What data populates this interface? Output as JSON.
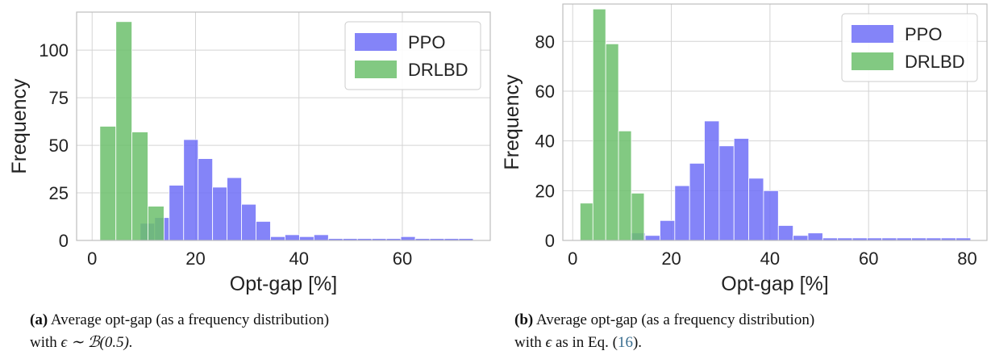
{
  "colors": {
    "ppo": "#6f6ff7",
    "drlbd": "#6cbf6c",
    "grid": "#d4d4d4",
    "frame": "#bdbdbd"
  },
  "chart_data": [
    {
      "type": "histogram",
      "xlabel": "Opt-gap [%]",
      "ylabel": "Frequency",
      "xlim": [
        -3,
        77
      ],
      "ylim": [
        0,
        120
      ],
      "xticks": [
        0,
        20,
        40,
        60
      ],
      "yticks": [
        0,
        25,
        50,
        75,
        100
      ],
      "grid": true,
      "legend_position": "top-right",
      "series": [
        {
          "name": "PPO",
          "bins": [
            [
              9.3,
              12.1,
              9
            ],
            [
              12.1,
              14.9,
              12
            ],
            [
              14.9,
              17.7,
              29
            ],
            [
              17.7,
              20.5,
              53
            ],
            [
              20.5,
              23.3,
              43
            ],
            [
              23.3,
              26.1,
              28
            ],
            [
              26.1,
              28.9,
              33
            ],
            [
              28.9,
              31.7,
              19
            ],
            [
              31.7,
              34.5,
              10
            ],
            [
              34.5,
              37.3,
              2
            ],
            [
              37.3,
              40.1,
              3
            ],
            [
              40.1,
              42.9,
              2
            ],
            [
              42.9,
              45.7,
              3
            ],
            [
              45.7,
              48.5,
              1
            ],
            [
              48.5,
              51.3,
              1
            ],
            [
              51.3,
              54.1,
              1
            ],
            [
              54.1,
              56.9,
              1
            ],
            [
              56.9,
              59.7,
              1
            ],
            [
              59.7,
              62.5,
              2
            ],
            [
              62.5,
              65.3,
              1
            ],
            [
              65.3,
              68.1,
              1
            ],
            [
              68.1,
              70.9,
              1
            ],
            [
              70.9,
              73.7,
              1
            ]
          ]
        },
        {
          "name": "DRLBD",
          "bins": [
            [
              1.5,
              4.6,
              60
            ],
            [
              4.6,
              7.7,
              115
            ],
            [
              7.7,
              10.8,
              57
            ],
            [
              10.8,
              13.9,
              18
            ]
          ]
        }
      ]
    },
    {
      "type": "histogram",
      "xlabel": "Opt-gap [%]",
      "ylabel": "Frequency",
      "xlim": [
        -2,
        84
      ],
      "ylim": [
        0,
        95
      ],
      "xticks": [
        0,
        20,
        40,
        60,
        80
      ],
      "yticks": [
        0,
        20,
        40,
        60,
        80
      ],
      "grid": true,
      "legend_position": "top-right",
      "series": [
        {
          "name": "PPO",
          "bins": [
            [
              11.7,
              14.7,
              3
            ],
            [
              14.7,
              17.7,
              2
            ],
            [
              17.7,
              20.7,
              8
            ],
            [
              20.7,
              23.7,
              22
            ],
            [
              23.7,
              26.7,
              31
            ],
            [
              26.7,
              29.7,
              48
            ],
            [
              29.7,
              32.7,
              38
            ],
            [
              32.7,
              35.7,
              41
            ],
            [
              35.7,
              38.7,
              25
            ],
            [
              38.7,
              41.7,
              20
            ],
            [
              41.7,
              44.7,
              6
            ],
            [
              44.7,
              47.7,
              2
            ],
            [
              47.7,
              50.7,
              3
            ],
            [
              50.7,
              53.7,
              1
            ],
            [
              53.7,
              56.7,
              1
            ],
            [
              56.7,
              59.7,
              1
            ],
            [
              59.7,
              62.7,
              1
            ],
            [
              62.7,
              65.7,
              1
            ],
            [
              65.7,
              68.7,
              1
            ],
            [
              68.7,
              71.7,
              1
            ],
            [
              71.7,
              74.7,
              1
            ],
            [
              74.7,
              77.7,
              1
            ],
            [
              77.7,
              80.7,
              1
            ]
          ]
        },
        {
          "name": "DRLBD",
          "bins": [
            [
              1.5,
              4.1,
              15
            ],
            [
              4.1,
              6.7,
              93
            ],
            [
              6.7,
              9.3,
              79
            ],
            [
              9.3,
              11.9,
              44
            ],
            [
              11.9,
              14.5,
              19
            ]
          ]
        }
      ]
    }
  ],
  "captions": [
    {
      "label": "(a)",
      "line1": "Average opt-gap (as a frequency distribution)",
      "line2_pre": "with",
      "line2_math": "ϵ ∼ ℬ(0.5)."
    },
    {
      "label": "(b)",
      "line1": "Average opt-gap (as a frequency distribution)",
      "line2_pre": "with",
      "line2_math": "ϵ",
      "line2_mid": "as in Eq. (",
      "line2_ref": "16",
      "line2_post": ")."
    }
  ]
}
